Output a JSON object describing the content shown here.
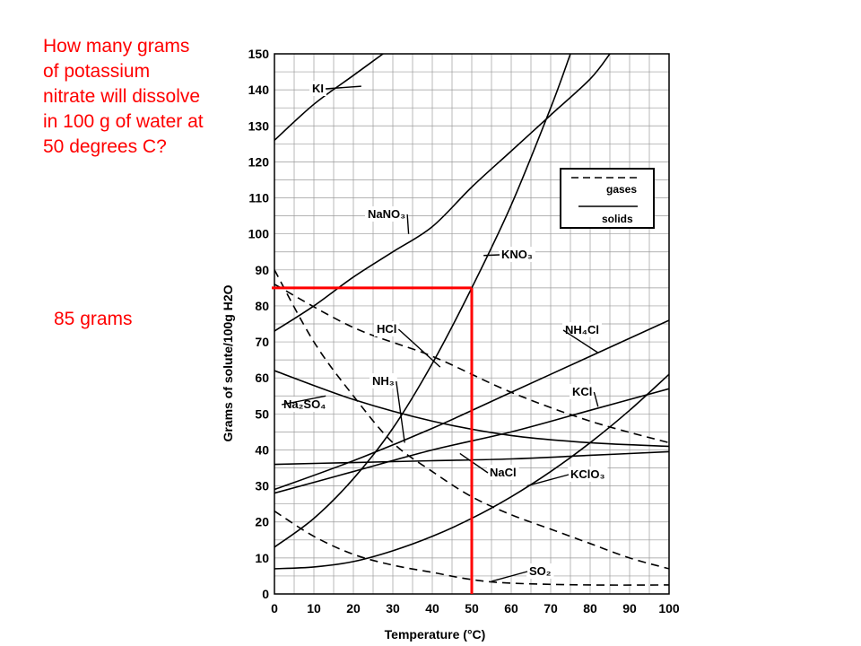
{
  "question": "How many grams of potassium nitrate will dissolve in 100 g of water at 50 degrees C?",
  "answer": "85 grams",
  "colors": {
    "accent": "#ff0000",
    "grid": "#9a9a9a",
    "curve": "#000000"
  },
  "chart_data": {
    "type": "line",
    "title": "",
    "xlabel": "Temperature (°C)",
    "ylabel": "Grams of solute/100g H2O",
    "xlim": [
      0,
      100
    ],
    "ylim": [
      0,
      150
    ],
    "x_ticks": [
      0,
      10,
      20,
      30,
      40,
      50,
      60,
      70,
      80,
      90,
      100
    ],
    "y_ticks": [
      0,
      10,
      20,
      30,
      40,
      50,
      60,
      70,
      80,
      90,
      100,
      110,
      120,
      130,
      140,
      150
    ],
    "grid": true,
    "legend": [
      {
        "label": "gases",
        "style": "dashed"
      },
      {
        "label": "solids",
        "style": "solid"
      }
    ],
    "series": [
      {
        "name": "KI",
        "label": "KI",
        "style": "solid",
        "points": [
          [
            0,
            126
          ],
          [
            10,
            136
          ],
          [
            20,
            144
          ],
          [
            30,
            152
          ]
        ]
      },
      {
        "name": "NaNO3",
        "label": "NaNO₃",
        "style": "solid",
        "points": [
          [
            0,
            73
          ],
          [
            10,
            80
          ],
          [
            20,
            88
          ],
          [
            30,
            95
          ],
          [
            40,
            102
          ],
          [
            50,
            113
          ],
          [
            60,
            123
          ],
          [
            70,
            133
          ],
          [
            80,
            143
          ],
          [
            85,
            150
          ]
        ]
      },
      {
        "name": "KNO3",
        "label": "KNO₃",
        "style": "solid",
        "points": [
          [
            0,
            13
          ],
          [
            10,
            21
          ],
          [
            20,
            32
          ],
          [
            30,
            46
          ],
          [
            40,
            64
          ],
          [
            50,
            85
          ],
          [
            60,
            108
          ],
          [
            70,
            135
          ],
          [
            75,
            150
          ]
        ]
      },
      {
        "name": "NH4Cl",
        "label": "NH₄Cl",
        "style": "solid",
        "points": [
          [
            0,
            29
          ],
          [
            20,
            37
          ],
          [
            40,
            46
          ],
          [
            60,
            56
          ],
          [
            80,
            66
          ],
          [
            100,
            76
          ]
        ]
      },
      {
        "name": "KCl",
        "label": "KCl",
        "style": "solid",
        "points": [
          [
            0,
            28
          ],
          [
            20,
            34
          ],
          [
            40,
            40
          ],
          [
            60,
            45
          ],
          [
            80,
            51
          ],
          [
            100,
            57
          ]
        ]
      },
      {
        "name": "NaCl",
        "label": "NaCl",
        "style": "solid",
        "points": [
          [
            0,
            36
          ],
          [
            20,
            36.5
          ],
          [
            40,
            37
          ],
          [
            60,
            37.5
          ],
          [
            80,
            38.5
          ],
          [
            100,
            39.5
          ]
        ]
      },
      {
        "name": "Na2SO4",
        "label": "Na₂SO₄",
        "style": "solid",
        "points": [
          [
            0,
            62
          ],
          [
            20,
            54
          ],
          [
            40,
            48
          ],
          [
            60,
            44
          ],
          [
            80,
            42
          ],
          [
            100,
            41
          ]
        ]
      },
      {
        "name": "KClO3",
        "label": "KClO₃",
        "style": "solid",
        "points": [
          [
            0,
            7
          ],
          [
            10,
            7.5
          ],
          [
            20,
            9
          ],
          [
            30,
            12
          ],
          [
            40,
            16
          ],
          [
            50,
            21
          ],
          [
            60,
            27
          ],
          [
            70,
            34
          ],
          [
            80,
            42
          ],
          [
            90,
            51
          ],
          [
            100,
            61
          ]
        ]
      },
      {
        "name": "HCl",
        "label": "HCl",
        "style": "dashed",
        "points": [
          [
            0,
            86
          ],
          [
            20,
            74
          ],
          [
            40,
            66
          ],
          [
            60,
            56
          ],
          [
            80,
            48
          ],
          [
            100,
            42
          ]
        ]
      },
      {
        "name": "NH3",
        "label": "NH₃",
        "style": "dashed",
        "points": [
          [
            0,
            90
          ],
          [
            10,
            70
          ],
          [
            20,
            55
          ],
          [
            30,
            42
          ],
          [
            40,
            34
          ],
          [
            50,
            27
          ],
          [
            60,
            22
          ],
          [
            70,
            18
          ],
          [
            80,
            14
          ],
          [
            90,
            10
          ],
          [
            100,
            7
          ]
        ]
      },
      {
        "name": "SO2",
        "label": "SO₂",
        "style": "dashed",
        "points": [
          [
            0,
            23
          ],
          [
            10,
            16
          ],
          [
            20,
            11
          ],
          [
            30,
            8
          ],
          [
            40,
            6
          ],
          [
            50,
            4
          ],
          [
            60,
            3
          ],
          [
            80,
            2.5
          ],
          [
            100,
            2.5
          ]
        ]
      }
    ],
    "annotation": {
      "temperature": 50,
      "solubility": 85,
      "color": "#ff0000"
    }
  }
}
